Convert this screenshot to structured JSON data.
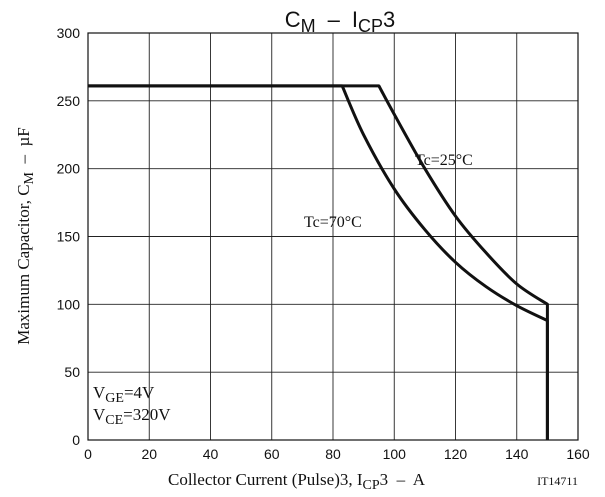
{
  "chart_data": {
    "type": "line",
    "title": {
      "main": "C",
      "main_sub": "M",
      "dash": "–",
      "var": "I",
      "var_sub": "CP",
      "var_suffix": "3"
    },
    "xlabel": {
      "prefix": "Collector Current (Pulse)3, I",
      "sub": "CP",
      "suffix": "3  –  A"
    },
    "ylabel": {
      "prefix": "Maximum Capacitor, C",
      "sub": "M",
      "suffix": "  –  µF"
    },
    "xlim": [
      0,
      160
    ],
    "ylim": [
      0,
      300
    ],
    "xticks": [
      "0",
      "20",
      "40",
      "60",
      "80",
      "100",
      "120",
      "140",
      "160"
    ],
    "yticks": [
      "0",
      "50",
      "100",
      "150",
      "200",
      "250",
      "300"
    ],
    "grid": true,
    "series": [
      {
        "name": "Tc=25°C",
        "points": [
          [
            0,
            261
          ],
          [
            95,
            261
          ],
          [
            100,
            240
          ],
          [
            110,
            200
          ],
          [
            120,
            165
          ],
          [
            130,
            138
          ],
          [
            140,
            115
          ],
          [
            150,
            100
          ],
          [
            150,
            0
          ]
        ]
      },
      {
        "name": "Tc=70°C",
        "points": [
          [
            0,
            261
          ],
          [
            83,
            261
          ],
          [
            90,
            225
          ],
          [
            100,
            185
          ],
          [
            110,
            155
          ],
          [
            120,
            131
          ],
          [
            130,
            113
          ],
          [
            140,
            99
          ],
          [
            150,
            88
          ],
          [
            150,
            0
          ]
        ]
      }
    ],
    "annotations": [
      {
        "prefix": "V",
        "sub": "GE",
        "suffix": "=4V"
      },
      {
        "prefix": "V",
        "sub": "CE",
        "suffix": "=320V"
      }
    ],
    "code": "IT14711"
  }
}
